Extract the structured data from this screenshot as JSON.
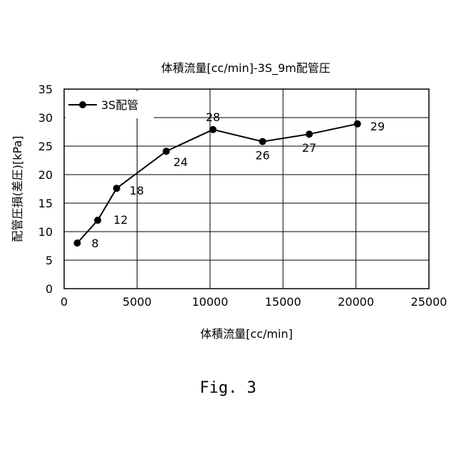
{
  "chart_data": {
    "type": "line",
    "title": "体積流量[cc/min]-3S_9m配管圧",
    "xlabel": "体積流量[cc/min]",
    "ylabel": "配管圧損(差圧)[kPa]",
    "xlim": [
      0,
      25000
    ],
    "ylim": [
      0,
      35
    ],
    "xticks": [
      0,
      5000,
      10000,
      15000,
      20000,
      25000
    ],
    "yticks": [
      0,
      5,
      10,
      15,
      20,
      25,
      30,
      35
    ],
    "grid": true,
    "legend_position": "top-left",
    "series": [
      {
        "name": "3S配管",
        "x": [
          900,
          2300,
          3600,
          7000,
          10200,
          13600,
          16800,
          20100
        ],
        "y": [
          8,
          12,
          17.6,
          24.1,
          27.9,
          25.8,
          27.1,
          28.9
        ],
        "labels": [
          "8",
          "12",
          "18",
          "24",
          "28",
          "26",
          "27",
          "29"
        ],
        "color": "#000000",
        "marker": "circle"
      }
    ]
  },
  "caption": "Fig. 3"
}
